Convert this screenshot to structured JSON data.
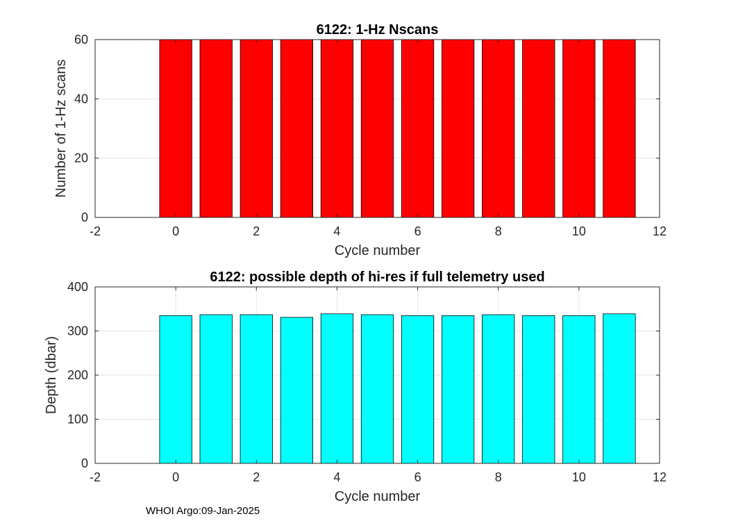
{
  "chart_data": [
    {
      "type": "bar",
      "title": "6122: 1-Hz Nscans",
      "xlabel": "Cycle number",
      "ylabel": "Number of 1-Hz scans",
      "x": [
        0,
        1,
        2,
        3,
        4,
        5,
        6,
        7,
        8,
        9,
        10,
        11
      ],
      "values": [
        60,
        60,
        60,
        60,
        60,
        60,
        60,
        60,
        60,
        60,
        60,
        60
      ],
      "xlim": [
        -2,
        12
      ],
      "ylim": [
        0,
        60
      ],
      "xticks": [
        "-2",
        "0",
        "2",
        "4",
        "6",
        "8",
        "10",
        "12"
      ],
      "xtick_values": [
        -2,
        0,
        2,
        4,
        6,
        8,
        10,
        12
      ],
      "yticks": [
        "0",
        "20",
        "40",
        "60"
      ],
      "ytick_values": [
        0,
        20,
        40,
        60
      ],
      "bar_color": "#ff0000",
      "grid": true
    },
    {
      "type": "bar",
      "title": "6122: possible depth of hi-res if full telemetry used",
      "xlabel": "Cycle number",
      "ylabel": "Depth (dbar)",
      "x": [
        0,
        1,
        2,
        3,
        4,
        5,
        6,
        7,
        8,
        9,
        10,
        11
      ],
      "values": [
        335,
        337,
        337,
        331,
        339,
        337,
        335,
        335,
        337,
        335,
        335,
        339
      ],
      "xlim": [
        -2,
        12
      ],
      "ylim": [
        0,
        400
      ],
      "xticks": [
        "-2",
        "0",
        "2",
        "4",
        "6",
        "8",
        "10",
        "12"
      ],
      "xtick_values": [
        -2,
        0,
        2,
        4,
        6,
        8,
        10,
        12
      ],
      "yticks": [
        "0",
        "100",
        "200",
        "300",
        "400"
      ],
      "ytick_values": [
        0,
        100,
        200,
        300,
        400
      ],
      "bar_color": "#00ffff",
      "grid": true
    }
  ],
  "footer": "WHOI Argo:09-Jan-2025"
}
